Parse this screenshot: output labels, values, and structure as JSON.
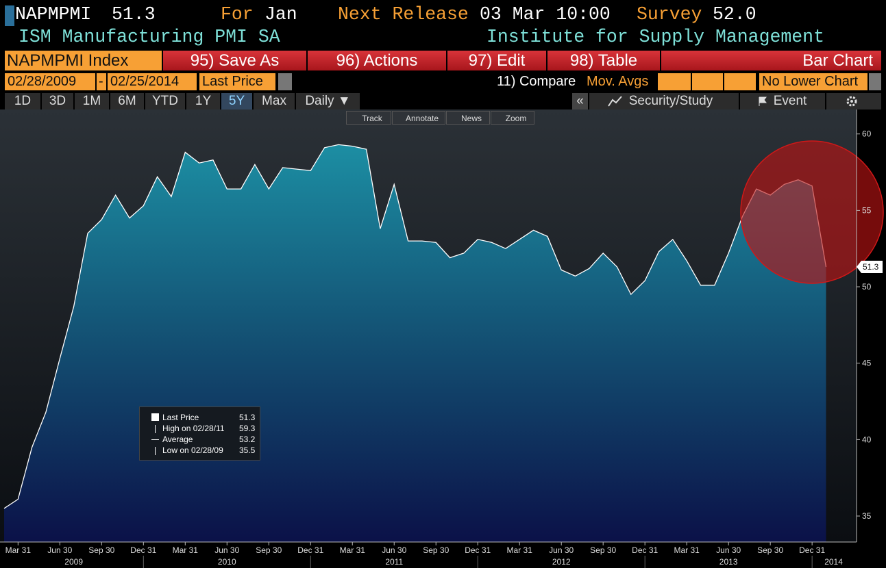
{
  "header": {
    "ticker": "NAPMPMI",
    "last": "51.3",
    "for_label": "For",
    "for_value": "Jan",
    "next_label": "Next Release",
    "next_value": "03 Mar 10:00",
    "survey_label": "Survey",
    "survey_value": "52.0",
    "name": "ISM Manufacturing PMI SA",
    "source": "Institute for Supply Management"
  },
  "toolbar": {
    "security": "NAPMPMI Index",
    "buttons": [
      "95) Save As",
      "96) Actions",
      "97) Edit",
      "98) Table"
    ],
    "chart_type": "Bar Chart"
  },
  "range": {
    "start": "02/28/2009",
    "separator": "-",
    "end": "02/25/2014",
    "field": "Last Price",
    "compare": "11) Compare",
    "mov_avgs": "Mov. Avgs",
    "lower_chart": "No Lower Chart"
  },
  "periods": [
    "1D",
    "3D",
    "1M",
    "6M",
    "YTD",
    "1Y",
    "5Y",
    "Max"
  ],
  "frequency": "Daily ▼",
  "collapse": "«",
  "security_study": "Security/Study",
  "event": "Event",
  "chart_tools": [
    "Track",
    "Annotate",
    "News",
    "Zoom"
  ],
  "chart_data": {
    "type": "area",
    "color": "#ffffff",
    "x": [
      "2009-02",
      "2009-03",
      "2009-04",
      "2009-05",
      "2009-06",
      "2009-07",
      "2009-08",
      "2009-09",
      "2009-10",
      "2009-11",
      "2009-12",
      "2010-01",
      "2010-02",
      "2010-03",
      "2010-04",
      "2010-05",
      "2010-06",
      "2010-07",
      "2010-08",
      "2010-09",
      "2010-10",
      "2010-11",
      "2010-12",
      "2011-01",
      "2011-02",
      "2011-03",
      "2011-04",
      "2011-05",
      "2011-06",
      "2011-07",
      "2011-08",
      "2011-09",
      "2011-10",
      "2011-11",
      "2011-12",
      "2012-01",
      "2012-02",
      "2012-03",
      "2012-04",
      "2012-05",
      "2012-06",
      "2012-07",
      "2012-08",
      "2012-09",
      "2012-10",
      "2012-11",
      "2012-12",
      "2013-01",
      "2013-02",
      "2013-03",
      "2013-04",
      "2013-05",
      "2013-06",
      "2013-07",
      "2013-08",
      "2013-09",
      "2013-10",
      "2013-11",
      "2013-12",
      "2014-01"
    ],
    "values": [
      35.5,
      36.1,
      39.5,
      41.8,
      45.3,
      48.7,
      53.5,
      54.4,
      56.0,
      54.5,
      55.3,
      57.2,
      55.9,
      58.8,
      58.1,
      58.3,
      56.4,
      56.4,
      58.0,
      56.4,
      57.8,
      57.7,
      57.6,
      59.1,
      59.3,
      59.2,
      59.0,
      53.8,
      56.7,
      53.0,
      53.0,
      52.9,
      51.9,
      52.2,
      53.1,
      52.9,
      52.5,
      53.1,
      53.7,
      53.3,
      51.1,
      50.7,
      51.2,
      52.2,
      51.3,
      49.5,
      50.4,
      52.3,
      53.1,
      51.7,
      50.1,
      50.1,
      52.2,
      54.6,
      56.4,
      56.0,
      56.7,
      57.0,
      56.6,
      51.3
    ],
    "ylim": [
      33.3,
      61.6
    ],
    "yticks": [
      35,
      40,
      45,
      50,
      55,
      60
    ],
    "xticks": [
      {
        "value": "2009-03",
        "label": "Mar 31"
      },
      {
        "value": "2009-06",
        "label": "Jun 30"
      },
      {
        "value": "2009-09",
        "label": "Sep 30"
      },
      {
        "value": "2009-12",
        "label": "Dec 31"
      },
      {
        "value": "2010-03",
        "label": "Mar 31"
      },
      {
        "value": "2010-06",
        "label": "Jun 30"
      },
      {
        "value": "2010-09",
        "label": "Sep 30"
      },
      {
        "value": "2010-12",
        "label": "Dec 31"
      },
      {
        "value": "2011-03",
        "label": "Mar 31"
      },
      {
        "value": "2011-06",
        "label": "Jun 30"
      },
      {
        "value": "2011-09",
        "label": "Sep 30"
      },
      {
        "value": "2011-12",
        "label": "Dec 31"
      },
      {
        "value": "2012-03",
        "label": "Mar 31"
      },
      {
        "value": "2012-06",
        "label": "Jun 30"
      },
      {
        "value": "2012-09",
        "label": "Sep 30"
      },
      {
        "value": "2012-12",
        "label": "Dec 31"
      },
      {
        "value": "2013-03",
        "label": "Mar 31"
      },
      {
        "value": "2013-06",
        "label": "Jun 30"
      },
      {
        "value": "2013-09",
        "label": "Sep 30"
      },
      {
        "value": "2013-12",
        "label": "Dec 31"
      }
    ],
    "year_labels": [
      "2009",
      "2010",
      "2011",
      "2012",
      "2013",
      "2014"
    ],
    "legend": [
      {
        "label": "Last Price",
        "value": 51.3
      },
      {
        "label": "High on 02/28/11",
        "value": 59.3
      },
      {
        "label": "Average",
        "value": 53.2
      },
      {
        "label": "Low on 02/28/09",
        "value": 35.5
      }
    ]
  }
}
